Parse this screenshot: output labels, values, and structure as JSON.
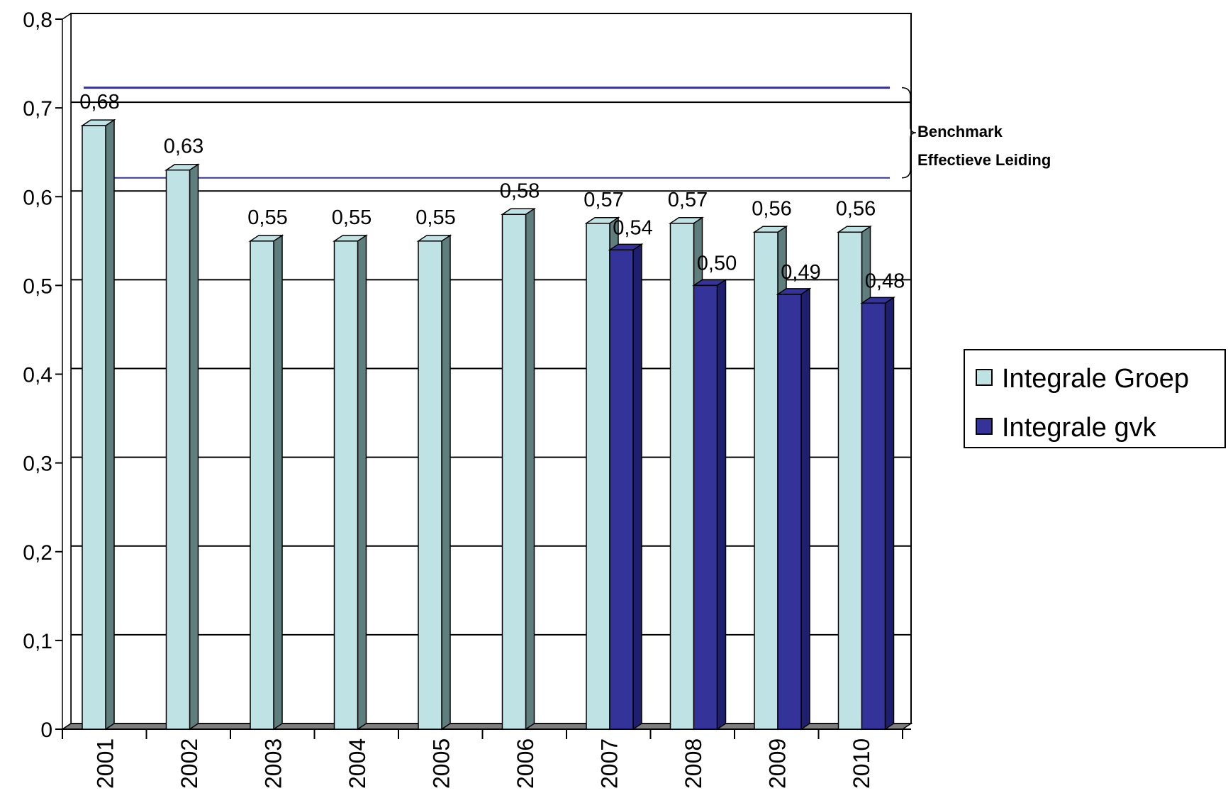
{
  "chart_data": {
    "type": "bar",
    "title": "",
    "xlabel": "",
    "ylabel": "",
    "ylim": [
      0,
      0.8
    ],
    "y_ticks": [
      "0",
      "0,1",
      "0,2",
      "0,3",
      "0,4",
      "0,5",
      "0,6",
      "0,7",
      "0,8"
    ],
    "categories": [
      "2001",
      "2002",
      "2003",
      "2004",
      "2005",
      "2006",
      "2007",
      "2008",
      "2009",
      "2010"
    ],
    "series": [
      {
        "name": "Integrale Groep",
        "color": "#BFE3E5",
        "values": [
          0.68,
          0.63,
          0.55,
          0.55,
          0.55,
          0.58,
          0.57,
          0.57,
          0.56,
          0.56
        ],
        "labels": [
          "0,68",
          "0,63",
          "0,55",
          "0,55",
          "0,55",
          "0,58",
          "0,57",
          "0,57",
          "0,56",
          "0,56"
        ]
      },
      {
        "name": "Integrale gvk",
        "color": "#333399",
        "values": [
          null,
          null,
          null,
          null,
          null,
          null,
          0.54,
          0.5,
          0.49,
          0.48
        ],
        "labels": [
          "",
          "",
          "",
          "",
          "",
          "",
          "0,54",
          "0,50",
          "0,49",
          "0,48"
        ]
      }
    ],
    "benchmark": {
      "label_line1": "Benchmark",
      "label_line2": "Effectieve Leiding",
      "range": [
        0.61,
        0.71
      ],
      "color": "#333399"
    },
    "grid": true,
    "legend_position": "right"
  }
}
